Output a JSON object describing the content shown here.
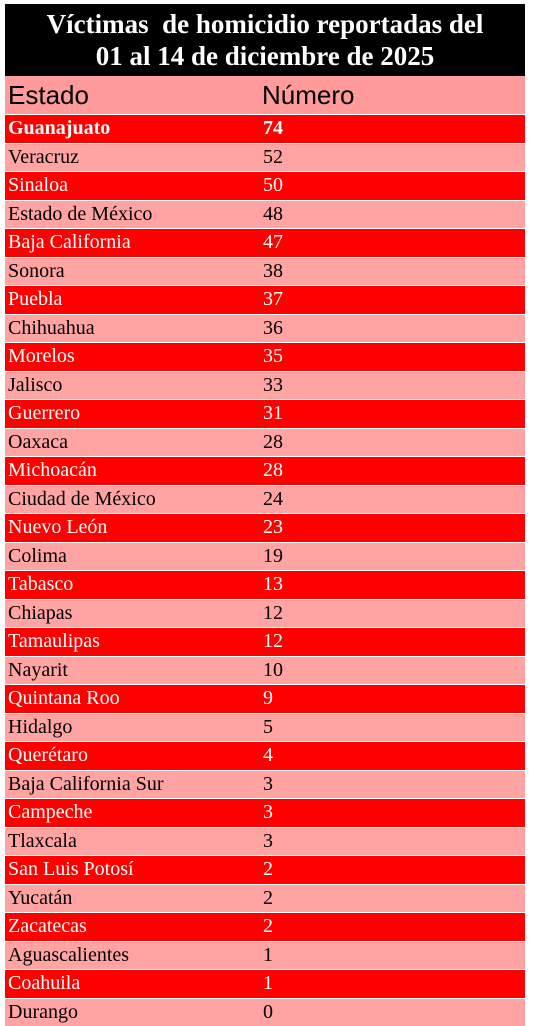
{
  "title": {
    "line1": "Víctimas  de homicidio reportadas del",
    "line2": "01 al 14 de diciembre de 2025"
  },
  "table": {
    "headers": [
      "Estado",
      "Número"
    ],
    "rows": [
      {
        "estado": "Guanajuato",
        "numero": "74"
      },
      {
        "estado": "Veracruz",
        "numero": "52"
      },
      {
        "estado": "Sinaloa",
        "numero": "50"
      },
      {
        "estado": "Estado de México",
        "numero": "48"
      },
      {
        "estado": "Baja California",
        "numero": "47"
      },
      {
        "estado": "Sonora",
        "numero": "38"
      },
      {
        "estado": "Puebla",
        "numero": "37"
      },
      {
        "estado": "Chihuahua",
        "numero": "36"
      },
      {
        "estado": "Morelos",
        "numero": "35"
      },
      {
        "estado": "Jalisco",
        "numero": "33"
      },
      {
        "estado": "Guerrero",
        "numero": "31"
      },
      {
        "estado": "Oaxaca",
        "numero": "28"
      },
      {
        "estado": "Michoacán",
        "numero": "28"
      },
      {
        "estado": "Ciudad de México",
        "numero": "24"
      },
      {
        "estado": "Nuevo León",
        "numero": "23"
      },
      {
        "estado": "Colima",
        "numero": "19"
      },
      {
        "estado": "Tabasco",
        "numero": "13"
      },
      {
        "estado": "Chiapas",
        "numero": "12"
      },
      {
        "estado": "Tamaulipas",
        "numero": "12"
      },
      {
        "estado": "Nayarit",
        "numero": "10"
      },
      {
        "estado": "Quintana Roo",
        "numero": "9"
      },
      {
        "estado": "Hidalgo",
        "numero": "5"
      },
      {
        "estado": "Querétaro",
        "numero": "4"
      },
      {
        "estado": "Baja California Sur",
        "numero": "3"
      },
      {
        "estado": "Campeche",
        "numero": "3"
      },
      {
        "estado": "Tlaxcala",
        "numero": "3"
      },
      {
        "estado": "San Luis Potosí",
        "numero": "2"
      },
      {
        "estado": "Yucatán",
        "numero": "2"
      },
      {
        "estado": "Zacatecas",
        "numero": "2"
      },
      {
        "estado": "Aguascalientes",
        "numero": "1"
      },
      {
        "estado": "Coahuila",
        "numero": "1"
      },
      {
        "estado": "Durango",
        "numero": "0"
      }
    ]
  },
  "colors": {
    "title_bg": "#000000",
    "highlight_row": "#ff0000",
    "light_row": "#ffa3a3"
  }
}
